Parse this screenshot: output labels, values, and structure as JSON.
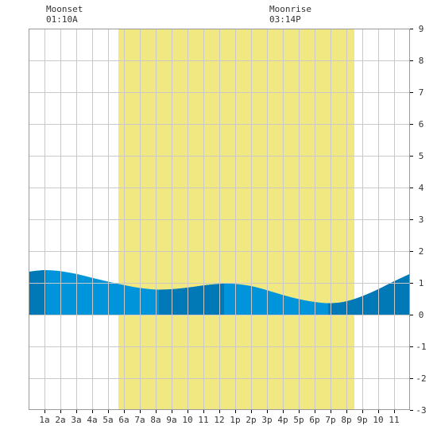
{
  "moon": {
    "moonset": {
      "label": "Moonset",
      "time": "01:10A"
    },
    "moonrise": {
      "label": "Moonrise",
      "time": "03:14P"
    }
  },
  "colors": {
    "daylight": "#f2e882",
    "tide_day": "#0095da",
    "tide_night": "#0079b6",
    "grid": "#c8c8c8",
    "axis": "#000000",
    "text": "#333333"
  },
  "chart_data": {
    "type": "area",
    "title": "",
    "xlabel": "",
    "ylabel": "",
    "xlim": [
      0,
      24
    ],
    "ylim": [
      -3,
      9
    ],
    "x_ticks": [
      1,
      2,
      3,
      4,
      5,
      6,
      7,
      8,
      9,
      10,
      11,
      12,
      13,
      14,
      15,
      16,
      17,
      18,
      19,
      20,
      21,
      22,
      23
    ],
    "x_tick_labels": [
      "1a",
      "2a",
      "3a",
      "4a",
      "5a",
      "6a",
      "7a",
      "8a",
      "9a",
      "10",
      "11",
      "12",
      "1p",
      "2p",
      "3p",
      "4p",
      "5p",
      "6p",
      "7p",
      "8p",
      "9p",
      "10",
      "11"
    ],
    "y_ticks": [
      -3,
      -2,
      -1,
      0,
      1,
      2,
      3,
      4,
      5,
      6,
      7,
      8,
      9
    ],
    "y_tick_labels": [
      "-3",
      "-2",
      "-1",
      "0",
      "1",
      "2",
      "3",
      "4",
      "5",
      "6",
      "7",
      "8",
      "9"
    ],
    "daylight": {
      "start": 5.65,
      "end": 20.5
    },
    "night_bands": [
      [
        0,
        1.1
      ],
      [
        8.2,
        12.3
      ],
      [
        18.85,
        24
      ]
    ],
    "tide": {
      "x": [
        0,
        1,
        2,
        3,
        4,
        5,
        6,
        7,
        8,
        9,
        10,
        11,
        12,
        13,
        14,
        15,
        16,
        17,
        18,
        19,
        20,
        21,
        22,
        23,
        24
      ],
      "y": [
        1.35,
        1.4,
        1.37,
        1.28,
        1.16,
        1.04,
        0.93,
        0.84,
        0.79,
        0.8,
        0.85,
        0.92,
        0.97,
        0.97,
        0.9,
        0.77,
        0.62,
        0.49,
        0.4,
        0.36,
        0.42,
        0.58,
        0.8,
        1.05,
        1.28
      ]
    },
    "grid": true
  }
}
